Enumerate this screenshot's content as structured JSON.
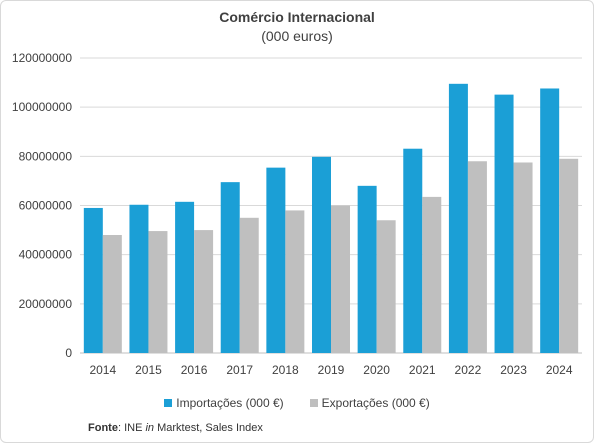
{
  "chart_data": {
    "type": "bar",
    "title": "Comércio Internacional",
    "subtitle": "(000 euros)",
    "categories": [
      "2014",
      "2015",
      "2016",
      "2017",
      "2018",
      "2019",
      "2020",
      "2021",
      "2022",
      "2023",
      "2024"
    ],
    "series": [
      {
        "name": "Importações (000 €)",
        "color": "#1b9fd6",
        "values": [
          59000000,
          60300000,
          61500000,
          69500000,
          75400000,
          79800000,
          68000000,
          83100000,
          109500000,
          105100000,
          107600000
        ]
      },
      {
        "name": "Exportações (000 €)",
        "color": "#bfbfbf",
        "values": [
          48000000,
          49600000,
          50000000,
          55000000,
          58000000,
          60000000,
          54000000,
          63500000,
          78000000,
          77500000,
          79000000
        ]
      }
    ],
    "yticks": [
      "0",
      "20000000",
      "40000000",
      "60000000",
      "80000000",
      "100000000",
      "120000000"
    ],
    "ylim": [
      0,
      120000000
    ],
    "grid": true,
    "legend_position": "bottom"
  },
  "source": {
    "label": "Fonte",
    "text_before": ": INE ",
    "italic": "in",
    "text_after": " Marktest, Sales Index"
  }
}
